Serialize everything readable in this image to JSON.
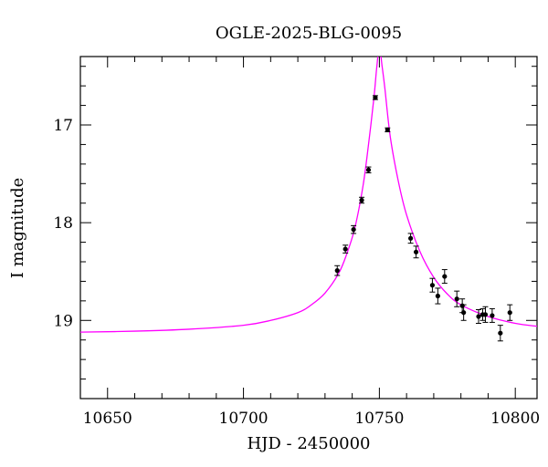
{
  "chart_data": {
    "type": "scatter",
    "title": "OGLE-2025-BLG-0095",
    "xlabel": "HJD - 2450000",
    "ylabel": "I magnitude",
    "xlim": [
      10640,
      10808
    ],
    "ylim": [
      19.8,
      16.3
    ],
    "y_inverted": true,
    "grid": false,
    "x_ticks": {
      "labels": [
        "10650",
        "10700",
        "10750",
        "10800"
      ],
      "values": [
        10650,
        10700,
        10750,
        10800
      ],
      "minor_step": 10
    },
    "y_ticks": {
      "labels": [
        "17",
        "18",
        "19"
      ],
      "values": [
        17,
        18,
        19
      ],
      "minor_step": 0.2
    },
    "series": [
      {
        "kind": "points",
        "color": "#000000",
        "x": [
          10734.5,
          10737.5,
          10740.5,
          10743.5,
          10746,
          10748.5,
          10753,
          10761.5,
          10763.5,
          10769.5,
          10771.5,
          10774,
          10778.5,
          10780.5,
          10781,
          10786.5,
          10788,
          10789,
          10791.5,
          10794.5,
          10798
        ],
        "y": [
          18.49,
          18.27,
          18.07,
          17.77,
          17.46,
          16.72,
          17.05,
          18.16,
          18.3,
          18.64,
          18.75,
          18.55,
          18.78,
          18.85,
          18.92,
          18.96,
          18.94,
          18.94,
          18.95,
          19.13,
          18.92
        ],
        "yerr": [
          0.05,
          0.04,
          0.04,
          0.03,
          0.03,
          0.02,
          0.02,
          0.05,
          0.06,
          0.07,
          0.08,
          0.07,
          0.08,
          0.07,
          0.08,
          0.07,
          0.06,
          0.08,
          0.07,
          0.08,
          0.08
        ]
      },
      {
        "kind": "model",
        "color": "#ff00ff",
        "x": [
          10640,
          10660,
          10680,
          10700,
          10710,
          10720,
          10725,
          10730,
          10735,
          10738,
          10741,
          10744,
          10746,
          10748,
          10749,
          10750,
          10751,
          10752,
          10754,
          10757,
          10760,
          10765,
          10770,
          10775,
          10780,
          10790,
          10800,
          10808
        ],
        "y": [
          19.12,
          19.11,
          19.09,
          19.05,
          19.0,
          18.92,
          18.84,
          18.72,
          18.52,
          18.32,
          18.05,
          17.62,
          17.2,
          16.72,
          16.42,
          16.2,
          16.4,
          16.62,
          17.12,
          17.58,
          17.92,
          18.3,
          18.56,
          18.73,
          18.84,
          18.96,
          19.03,
          19.06
        ]
      }
    ]
  }
}
